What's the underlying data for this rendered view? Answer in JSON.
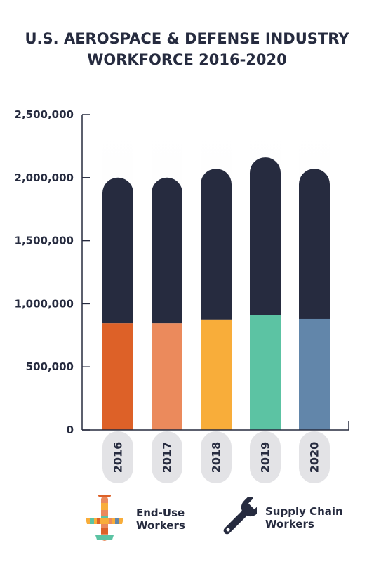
{
  "title": {
    "line1": "U.S. AEROSPACE & DEFENSE INDUSTRY",
    "line2": "WORKFORCE 2016-2020"
  },
  "chart_data": {
    "type": "bar",
    "stacked": true,
    "categories": [
      "2016",
      "2017",
      "2018",
      "2019",
      "2020"
    ],
    "series": [
      {
        "name": "End-Use Workers",
        "values": [
          845000,
          845000,
          875000,
          910000,
          880000
        ]
      },
      {
        "name": "Supply Chain Workers",
        "values": [
          1155000,
          1155000,
          1195000,
          1250000,
          1190000
        ]
      }
    ],
    "ylim": [
      0,
      2500000
    ],
    "yticks": [
      0,
      500000,
      1000000,
      1500000,
      2000000,
      2500000
    ],
    "ytick_labels": [
      "0",
      "500,000",
      "1,000,000",
      "1,500,000",
      "2,000,000",
      "2,500,000"
    ],
    "end_use_colors": [
      "#dd6128",
      "#eb8a5c",
      "#f8ad3a",
      "#5cc3a3",
      "#6286aa"
    ],
    "supply_chain_color": "#262b3f",
    "grid": false,
    "legend_position": "bottom"
  },
  "legend": {
    "end_use": {
      "line1": "End-Use",
      "line2": "Workers",
      "icon": "airplane-icon"
    },
    "supply_chain": {
      "line1": "Supply Chain",
      "line2": "Workers",
      "icon": "wrench-icon"
    }
  }
}
